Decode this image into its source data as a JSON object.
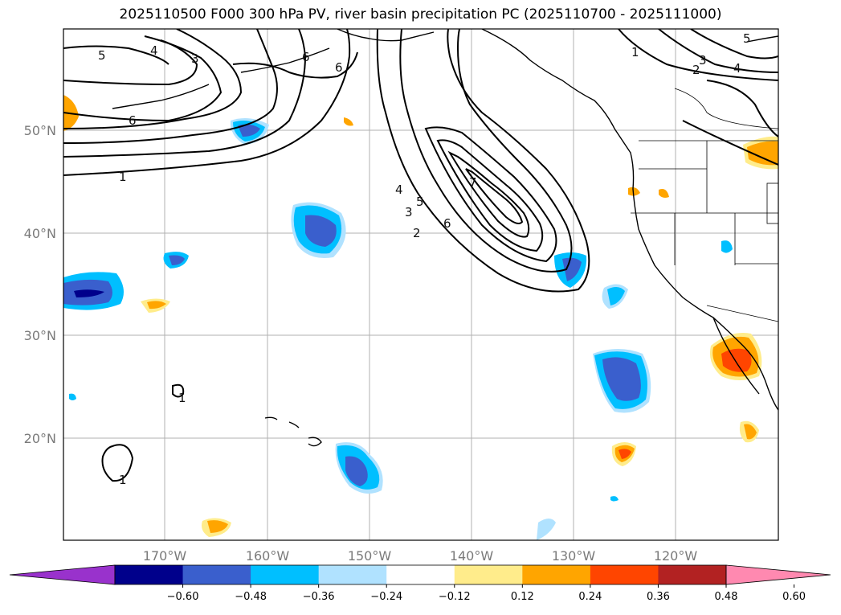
{
  "title": "2025110500 F000 300 hPa PV, river basin precipitation PC (2025110700 - 2025111000)",
  "lat_labels": [
    "50°N",
    "40°N",
    "30°N",
    "20°N"
  ],
  "lon_labels": [
    "170°W",
    "160°W",
    "150°W",
    "140°W",
    "130°W",
    "120°W"
  ],
  "colorbar": {
    "ticks": [
      "−0.60",
      "−0.48",
      "−0.36",
      "−0.24",
      "−0.12",
      "0.12",
      "0.24",
      "0.36",
      "0.48",
      "0.60"
    ],
    "colors": [
      "#9932cc",
      "#00008b",
      "#3a5fcd",
      "#00bfff",
      "#b0e2ff",
      "#ffffff",
      "#ffec8b",
      "#ffa500",
      "#ff4500",
      "#b22222",
      "#ff89b0"
    ]
  },
  "contour_labels": [
    "5",
    "4",
    "3",
    "6",
    "1",
    "6",
    "6",
    "1",
    "3",
    "2",
    "4",
    "5",
    "7",
    "4",
    "5",
    "3",
    "6",
    "2",
    "1",
    "1"
  ]
}
